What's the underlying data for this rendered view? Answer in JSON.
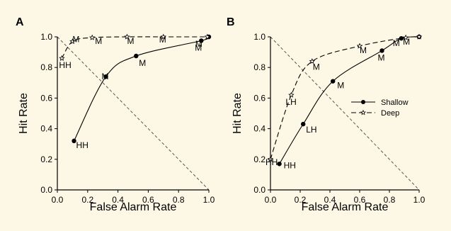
{
  "chart_data": [
    {
      "type": "line",
      "panel_label": "A",
      "xlabel": "False Alarm Rate",
      "ylabel": "Hit Rate",
      "xlim": [
        0,
        1
      ],
      "ylim": [
        0,
        1
      ],
      "xticks": [
        "0.0",
        "0.2",
        "0.4",
        "0.6",
        "0.8",
        "1.0"
      ],
      "yticks": [
        "0.0",
        "0.2",
        "0.4",
        "0.6",
        "0.8",
        "1.0"
      ],
      "chance_line": true,
      "series": [
        {
          "key": "shallow",
          "style": "solid",
          "marker": "filled-circle",
          "points": [
            {
              "x": 0.11,
              "y": 0.32,
              "label": "HH"
            },
            {
              "x": 0.32,
              "y": 0.74,
              "label": "M"
            },
            {
              "x": 0.52,
              "y": 0.875,
              "label": "M"
            },
            {
              "x": 0.95,
              "y": 0.975,
              "label": "M"
            },
            {
              "x": 1.0,
              "y": 1.0,
              "label": ""
            }
          ]
        },
        {
          "key": "deep",
          "style": "dashed",
          "marker": "star",
          "points": [
            {
              "x": 0.03,
              "y": 0.86,
              "label": "HH"
            },
            {
              "x": 0.1,
              "y": 0.97,
              "label": "M"
            },
            {
              "x": 0.23,
              "y": 0.995,
              "label": "M"
            },
            {
              "x": 0.46,
              "y": 1.0,
              "label": "M"
            },
            {
              "x": 0.7,
              "y": 1.0,
              "label": "M"
            },
            {
              "x": 0.99,
              "y": 1.0,
              "label": "M"
            }
          ]
        }
      ]
    },
    {
      "type": "line",
      "panel_label": "B",
      "xlabel": "False Alarm Rate",
      "ylabel": "Hit Rate",
      "xlim": [
        0,
        1
      ],
      "ylim": [
        0,
        1
      ],
      "xticks": [
        "0.0",
        "0.2",
        "0.4",
        "0.6",
        "0.8",
        "1.0"
      ],
      "yticks": [
        "0.0",
        "0.2",
        "0.4",
        "0.6",
        "0.8",
        "1.0"
      ],
      "chance_line": true,
      "legend": {
        "position": "center-right",
        "entries": [
          {
            "series": "shallow",
            "label": "Shallow"
          },
          {
            "series": "deep",
            "label": "Deep"
          }
        ]
      },
      "series": [
        {
          "key": "shallow",
          "style": "solid",
          "marker": "filled-circle",
          "points": [
            {
              "x": 0.06,
              "y": 0.17,
              "label": "HH"
            },
            {
              "x": 0.22,
              "y": 0.43,
              "label": "LH"
            },
            {
              "x": 0.42,
              "y": 0.71,
              "label": "M"
            },
            {
              "x": 0.75,
              "y": 0.91,
              "label": "M"
            },
            {
              "x": 0.88,
              "y": 0.99,
              "label": "M"
            },
            {
              "x": 1.0,
              "y": 1.0,
              "label": ""
            }
          ]
        },
        {
          "key": "deep",
          "style": "dashed",
          "marker": "star",
          "points": [
            {
              "x": 0.0,
              "y": 0.2,
              "label": "HH"
            },
            {
              "x": 0.14,
              "y": 0.62,
              "label": "LH"
            },
            {
              "x": 0.28,
              "y": 0.84,
              "label": "M"
            },
            {
              "x": 0.6,
              "y": 0.94,
              "label": "M"
            },
            {
              "x": 0.91,
              "y": 0.995,
              "label": "M"
            },
            {
              "x": 1.0,
              "y": 1.0,
              "label": ""
            }
          ]
        }
      ]
    }
  ]
}
